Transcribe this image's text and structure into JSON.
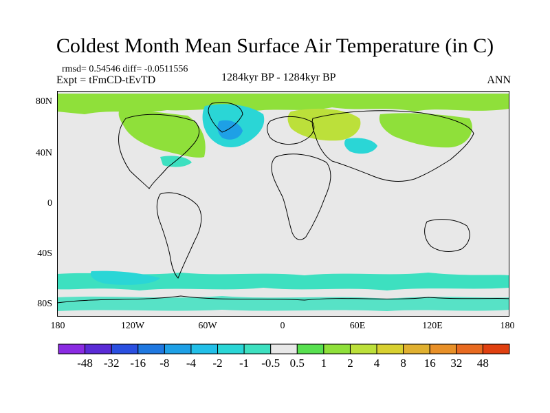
{
  "title": "Coldest Month Mean Surface Air Temperature (in C)",
  "stats": "rmsd= 0.54546  diff= -0.0511556",
  "experiment": "Expt = tFmCD-tEvTD",
  "period": "1284kyr BP - 1284kyr BP",
  "season": "ANN",
  "axes": {
    "y_ticks": [
      "80N",
      "40N",
      "0",
      "40S",
      "80S"
    ],
    "x_ticks": [
      "180",
      "120W",
      "60W",
      "0",
      "60E",
      "120E",
      "180"
    ]
  },
  "colorbar": {
    "labels": [
      "-48",
      "-32",
      "-16",
      "-8",
      "-4",
      "-2",
      "-1",
      "-0.5",
      "0.5",
      "1",
      "2",
      "4",
      "8",
      "16",
      "32",
      "48"
    ],
    "colors": [
      "#8a2be2",
      "#5a2bd6",
      "#2a4fe0",
      "#1f78e0",
      "#1ea0e6",
      "#22bfe8",
      "#2ad6d6",
      "#3de0c0",
      "#e8e8e8",
      "#58e050",
      "#8fe03a",
      "#bce03a",
      "#d8d030",
      "#e0b030",
      "#e89028",
      "#e86a20",
      "#e04010"
    ]
  },
  "colors": {
    "land_outline": "#000000",
    "neutral_fill": "#e8e8e8",
    "green": "#8fe03a",
    "yellow_green": "#bce03a",
    "cyan": "#2ad6d6",
    "teal": "#3de0c0",
    "blue": "#1ea0e6"
  }
}
